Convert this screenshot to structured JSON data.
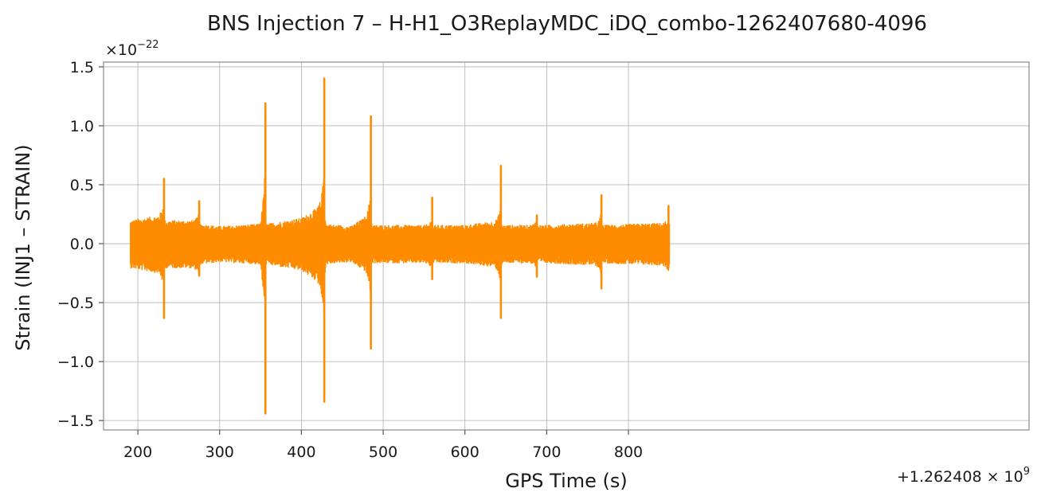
{
  "chart_data": {
    "type": "line",
    "title": "BNS Injection 7 – H-H1_O3ReplayMDC_iDQ_combo-1262407680-4096",
    "xlabel": "GPS Time (s)",
    "ylabel": "Strain (INJ1 – STRAIN)",
    "x_offset_label": {
      "base": "+1.262408 × 10",
      "exp": "9"
    },
    "y_scale_label": {
      "base": "×10",
      "exp": "−22"
    },
    "xlim": [
      158,
      1290
    ],
    "ylim": [
      -1.58,
      1.54
    ],
    "x_ticks": [
      200,
      300,
      400,
      500,
      600,
      700,
      800
    ],
    "x_tick_labels": [
      "200",
      "300",
      "400",
      "500",
      "600",
      "700",
      "800"
    ],
    "y_ticks": [
      -1.5,
      -1.0,
      -0.5,
      0.0,
      0.5,
      1.0,
      1.5
    ],
    "y_tick_labels": [
      "−1.5",
      "−1.0",
      "−0.5",
      "0.0",
      "0.5",
      "1.0",
      "1.5"
    ],
    "grid": true,
    "series": [
      {
        "color": "#ff8c00",
        "x_start": 191,
        "x_end": 850,
        "noise_baseline": [
          [
            191,
            0.2
          ],
          [
            232,
            0.25
          ],
          [
            233,
            0.2
          ],
          [
            275,
            0.2
          ],
          [
            276,
            0.17
          ],
          [
            300,
            0.15
          ],
          [
            350,
            0.17
          ],
          [
            355,
            0.35
          ],
          [
            357,
            0.17
          ],
          [
            400,
            0.22
          ],
          [
            428,
            0.35
          ],
          [
            430,
            0.17
          ],
          [
            460,
            0.15
          ],
          [
            484,
            0.25
          ],
          [
            487,
            0.16
          ],
          [
            560,
            0.16
          ],
          [
            600,
            0.16
          ],
          [
            644,
            0.2
          ],
          [
            646,
            0.16
          ],
          [
            700,
            0.16
          ],
          [
            767,
            0.18
          ],
          [
            769,
            0.16
          ],
          [
            850,
            0.18
          ]
        ],
        "bursts": [
          {
            "x": 232,
            "peak": 0.55,
            "trough": -0.63
          },
          {
            "x": 275,
            "peak": 0.36,
            "trough": -0.27
          },
          {
            "x": 356,
            "peak": 1.19,
            "trough": -1.44
          },
          {
            "x": 428,
            "peak": 1.4,
            "trough": -1.34
          },
          {
            "x": 485,
            "peak": 1.08,
            "trough": -0.89
          },
          {
            "x": 560,
            "peak": 0.39,
            "trough": -0.3
          },
          {
            "x": 644,
            "peak": 0.66,
            "trough": -0.63
          },
          {
            "x": 688,
            "peak": 0.24,
            "trough": -0.28
          },
          {
            "x": 767,
            "peak": 0.41,
            "trough": -0.38
          },
          {
            "x": 849,
            "peak": 0.32,
            "trough": -0.2
          }
        ]
      }
    ]
  }
}
